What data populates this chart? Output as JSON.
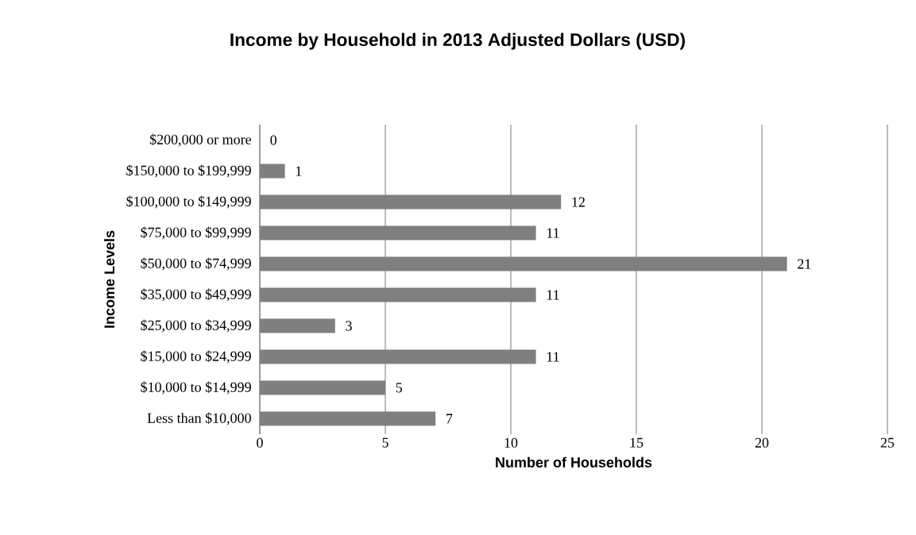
{
  "chart_data": {
    "type": "bar",
    "orientation": "horizontal",
    "title": "Income by Household in 2013 Adjusted Dollars (USD)",
    "xlabel": "Number of Households",
    "ylabel": "Income Levels",
    "categories": [
      "$200,000 or more",
      "$150,000 to $199,999",
      "$100,000 to $149,999",
      "$75,000 to $99,999",
      "$50,000 to $74,999",
      "$35,000 to $49,999",
      "$25,000 to $34,999",
      "$15,000 to $24,999",
      "$10,000 to $14,999",
      "Less than $10,000"
    ],
    "values": [
      0,
      1,
      12,
      11,
      21,
      11,
      3,
      11,
      5,
      7
    ],
    "color": "#7f7f7f",
    "xlim": [
      0,
      25
    ],
    "xticks": [
      0,
      5,
      10,
      15,
      20,
      25
    ],
    "grid": "x",
    "data_labels": true
  }
}
